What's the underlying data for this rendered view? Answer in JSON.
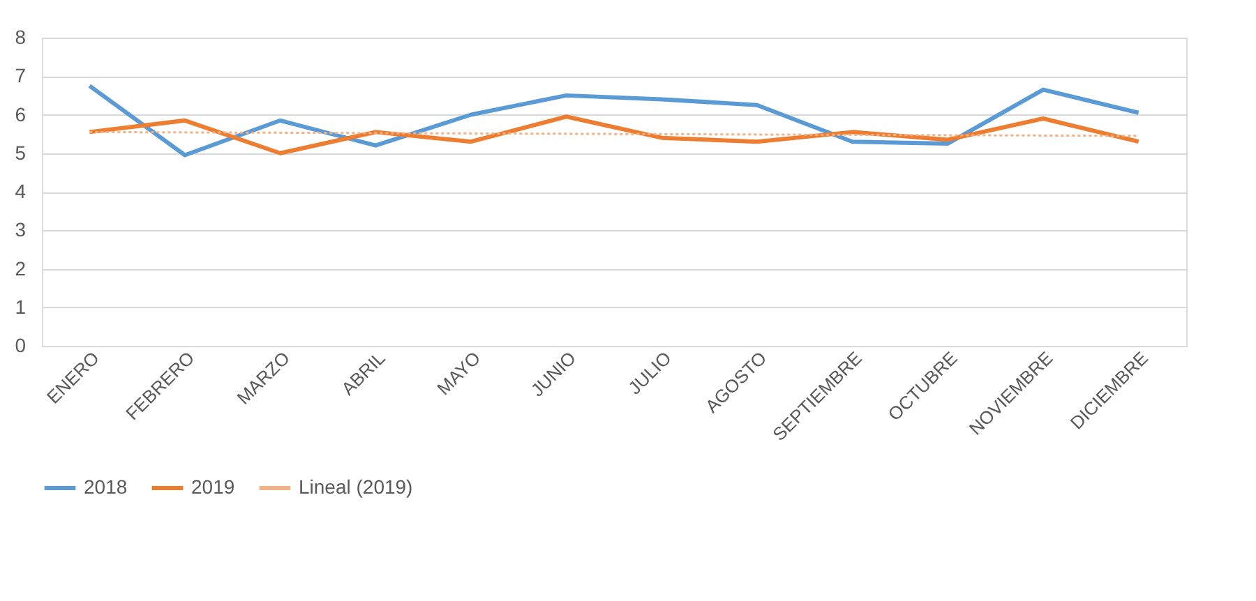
{
  "chart_data": {
    "type": "line",
    "categories": [
      "ENERO",
      "FEBRERO",
      "MARZO",
      "ABRIL",
      "MAYO",
      "JUNIO",
      "JULIO",
      "AGOSTO",
      "SEPTIEMBRE",
      "OCTUBRE",
      "NOVIEMBRE",
      "DICIEMBRE"
    ],
    "series": [
      {
        "name": "2018",
        "color": "#5b9bd5",
        "values": [
          6.75,
          4.95,
          5.85,
          5.2,
          6.0,
          6.5,
          6.4,
          6.25,
          5.3,
          5.25,
          6.65,
          6.05
        ]
      },
      {
        "name": "2019",
        "color": "#ed7d31",
        "values": [
          5.55,
          5.85,
          5.0,
          5.55,
          5.3,
          5.95,
          5.4,
          5.3,
          5.55,
          5.35,
          5.9,
          5.3
        ]
      },
      {
        "name": "Lineal (2019)",
        "color": "#f4b183",
        "type": "line",
        "line_style": "dotted",
        "x": [
          "ENERO",
          "DICIEMBRE"
        ],
        "values": [
          5.55,
          5.45
        ]
      }
    ],
    "ylim": [
      0,
      8
    ],
    "yticks": [
      0,
      1,
      2,
      3,
      4,
      5,
      6,
      7,
      8
    ],
    "grid": "y",
    "legend": "bottom",
    "line_style": "solid",
    "marker": "none"
  }
}
